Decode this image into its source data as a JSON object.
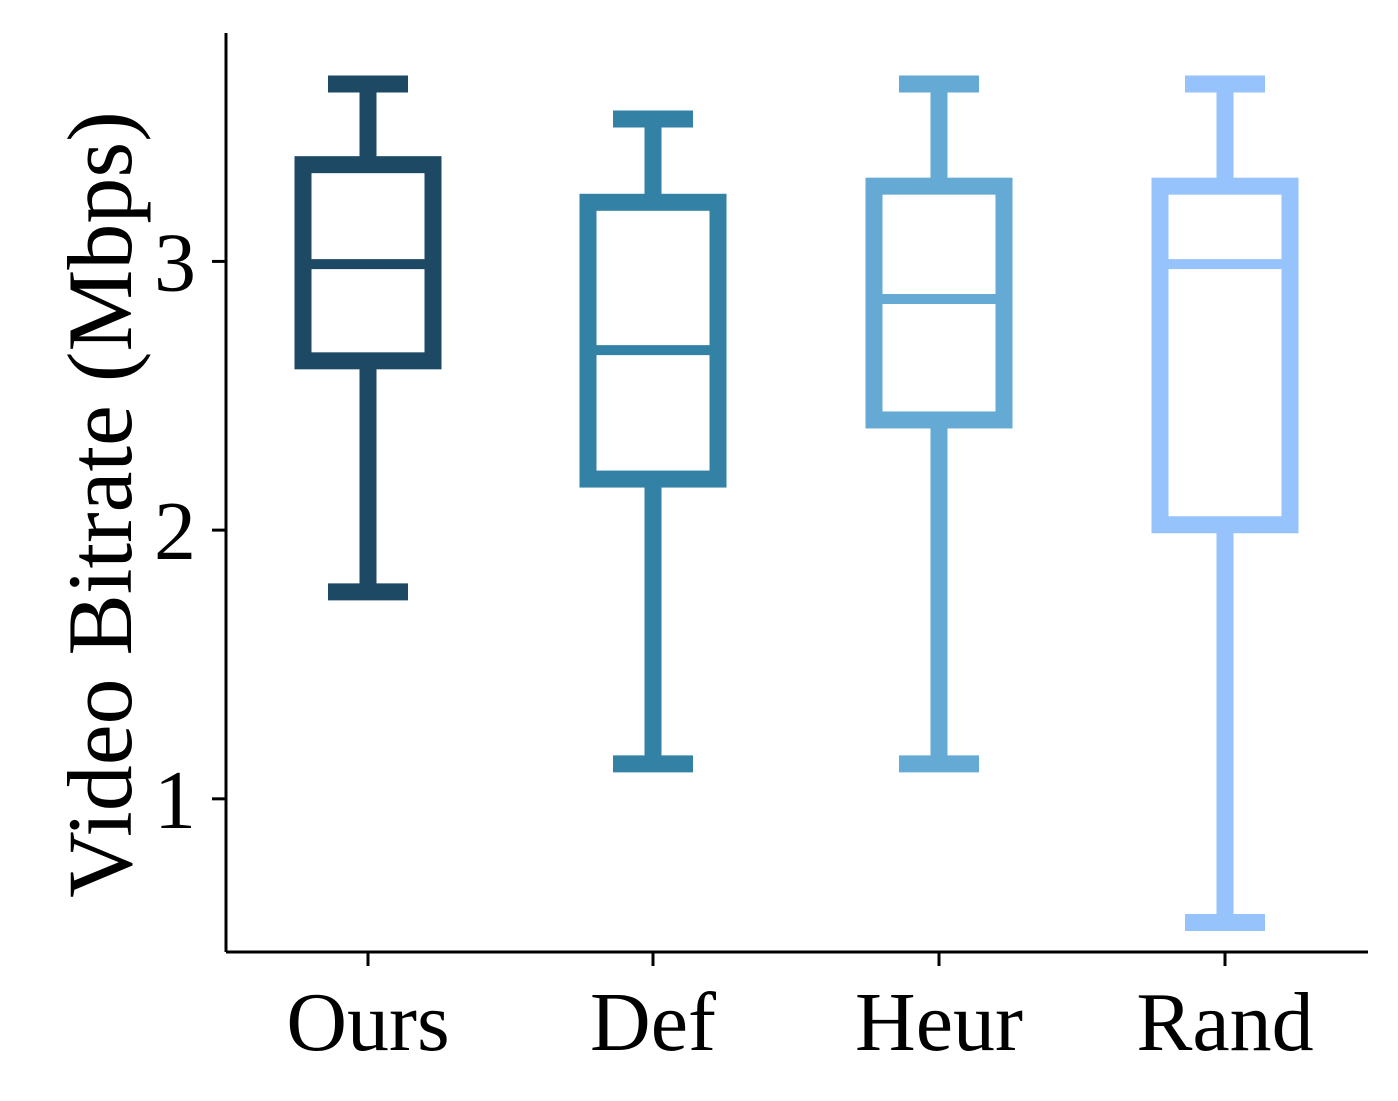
{
  "chart_data": {
    "type": "box",
    "title": "",
    "xlabel": "",
    "ylabel": "Video Bitrate (Mbps)",
    "ylim": [
      0.43,
      3.85
    ],
    "yticks": [
      1,
      2,
      3
    ],
    "grid": false,
    "legend": "none",
    "categories": [
      "Ours",
      "Def",
      "Heur",
      "Rand"
    ],
    "boxes": [
      {
        "category": "Ours",
        "whisker_low": 1.77,
        "q1": 2.63,
        "median": 2.99,
        "q3": 3.36,
        "whisker_high": 3.66,
        "color": "#1d4965"
      },
      {
        "category": "Def",
        "whisker_low": 1.13,
        "q1": 2.19,
        "median": 2.67,
        "q3": 3.22,
        "whisker_high": 3.53,
        "color": "#3382a6"
      },
      {
        "category": "Heur",
        "whisker_low": 1.13,
        "q1": 2.41,
        "median": 2.86,
        "q3": 3.28,
        "whisker_high": 3.66,
        "color": "#64aad5"
      },
      {
        "category": "Rand",
        "whisker_low": 0.54,
        "q1": 2.02,
        "median": 2.99,
        "q3": 3.28,
        "whisker_high": 3.66,
        "color": "#96c3fc"
      }
    ]
  }
}
